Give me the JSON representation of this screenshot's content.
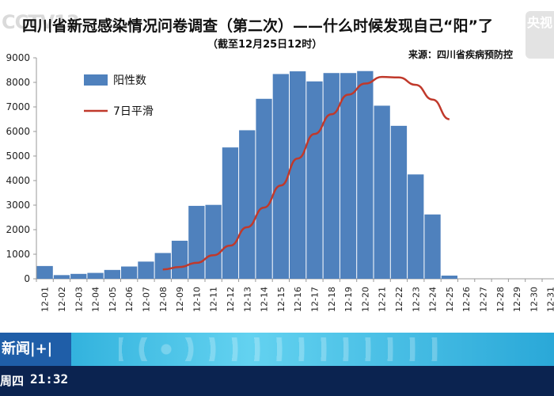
{
  "header": {
    "title": "四川省新冠感染情况问卷调查（第二次）——什么时候发现自己“阳”了",
    "subtitle": "（截至12月25日12时）",
    "source": "来源：四川省疾病预防控"
  },
  "broadcast": {
    "channel_logo": "CCTV13",
    "corner_logo": "央视",
    "news_badge": "新闻|+|",
    "weekday": "周四",
    "time": "21:32"
  },
  "colors": {
    "bar": "#4f81bd",
    "line": "#c0392b"
  },
  "chart_data": {
    "type": "bar",
    "title": "",
    "xlabel": "",
    "ylabel": "",
    "ylim": [
      0,
      9000
    ],
    "yticks": [
      0,
      1000,
      2000,
      3000,
      4000,
      5000,
      6000,
      7000,
      8000,
      9000
    ],
    "ytick_labels": [
      "0",
      "1000",
      "2000",
      "3000",
      "4000",
      "5000",
      "6000",
      "7000",
      "8000",
      "9000"
    ],
    "grid": false,
    "legend_position": "top-left",
    "categories": [
      "12-01",
      "12-02",
      "12-03",
      "12-04",
      "12-05",
      "12-06",
      "12-07",
      "12-08",
      "12-09",
      "12-10",
      "12-11",
      "12-12",
      "12-13",
      "12-14",
      "12-15",
      "12-16",
      "12-17",
      "12-18",
      "12-19",
      "12-20",
      "12-21",
      "12-22",
      "12-23",
      "12-24",
      "12-25",
      "12-26",
      "12-27",
      "12-28",
      "12-29",
      "12-30",
      "12-31"
    ],
    "series": [
      {
        "name": "阳性数",
        "type": "bar",
        "values": [
          520,
          150,
          200,
          240,
          360,
          500,
          700,
          1050,
          1550,
          2970,
          3010,
          5350,
          6050,
          7330,
          8340,
          8450,
          8040,
          8380,
          8380,
          8460,
          7050,
          6230,
          4250,
          2620,
          130,
          0,
          0,
          0,
          0,
          0,
          0
        ]
      },
      {
        "name": "7日平滑",
        "type": "line",
        "values": [
          null,
          null,
          null,
          null,
          null,
          null,
          null,
          380,
          480,
          650,
          960,
          1350,
          2100,
          2900,
          3800,
          4900,
          5900,
          6700,
          7500,
          7950,
          8220,
          8200,
          7900,
          7300,
          6500,
          null,
          null,
          null,
          null,
          null,
          null
        ]
      }
    ]
  }
}
